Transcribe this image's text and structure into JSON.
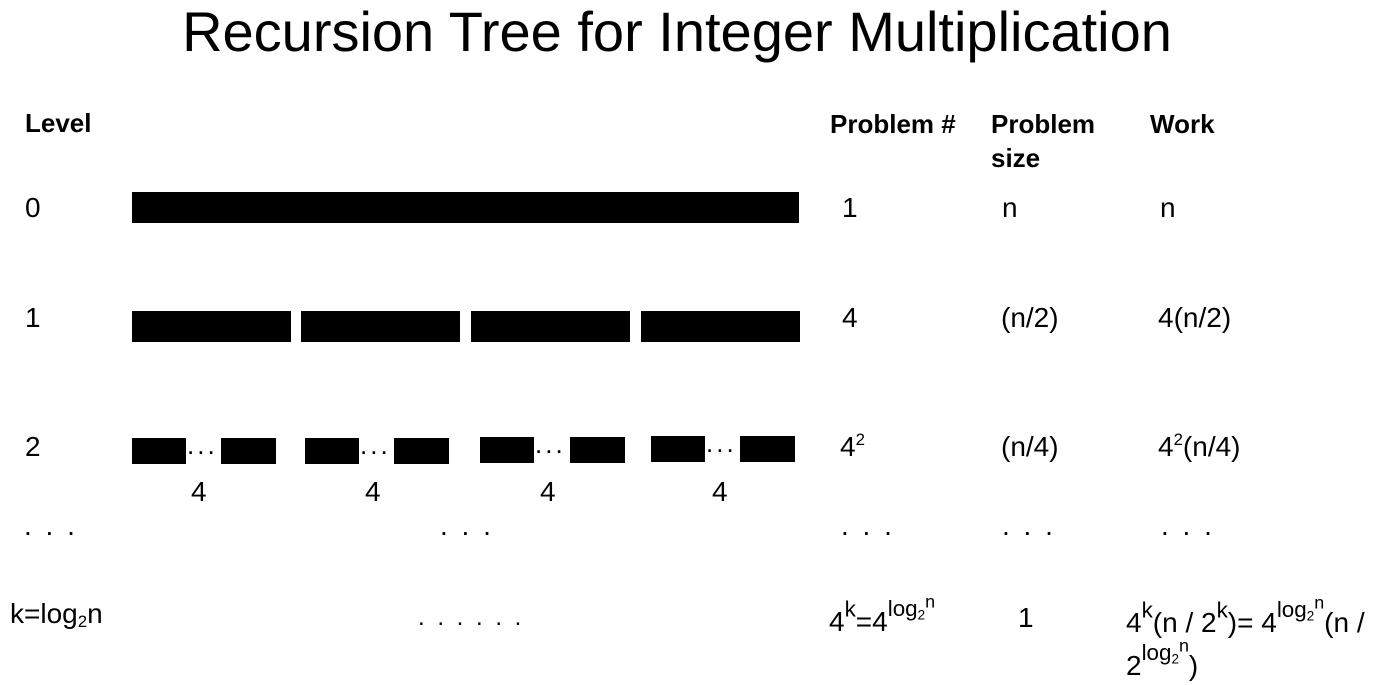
{
  "title": "Recursion Tree for Integer Multiplication",
  "headers": {
    "level": "Level",
    "problem_count": "Problem #",
    "problem_size_line1": "Problem",
    "problem_size_line2": "size",
    "work": "Work"
  },
  "rows": [
    {
      "level": "0",
      "problems": "1",
      "size": "n",
      "work": "n"
    },
    {
      "level": "1",
      "problems": "4",
      "size": "(n/2)",
      "work": "4(n/2)"
    },
    {
      "level": "2",
      "problems_base": "4",
      "problems_exp": "2",
      "size": "(n/4)",
      "work_base": "4",
      "work_exp": "2",
      "work_rest": "(n/4)"
    }
  ],
  "level2_group_count_label": "4",
  "ellipsis": ". . .",
  "last_row": {
    "level_prefix": "k=log",
    "level_sub": "2",
    "level_suffix": "n",
    "tree_dots": ". . . . . .",
    "problems": {
      "a": "4",
      "a_exp": "k",
      "eq": "=4",
      "log": "log",
      "log_sub": "2",
      "log_exp": "n"
    },
    "size": "1",
    "work": {
      "p1": "4",
      "p1_exp": "k",
      "p2": "(n / 2",
      "p2_exp": "k",
      "p3": ")= 4",
      "log": "log",
      "log_sub": "2",
      "log_exp": "n",
      "p4": "(n /",
      "line2_base": "2",
      "line2_close": ")"
    }
  }
}
